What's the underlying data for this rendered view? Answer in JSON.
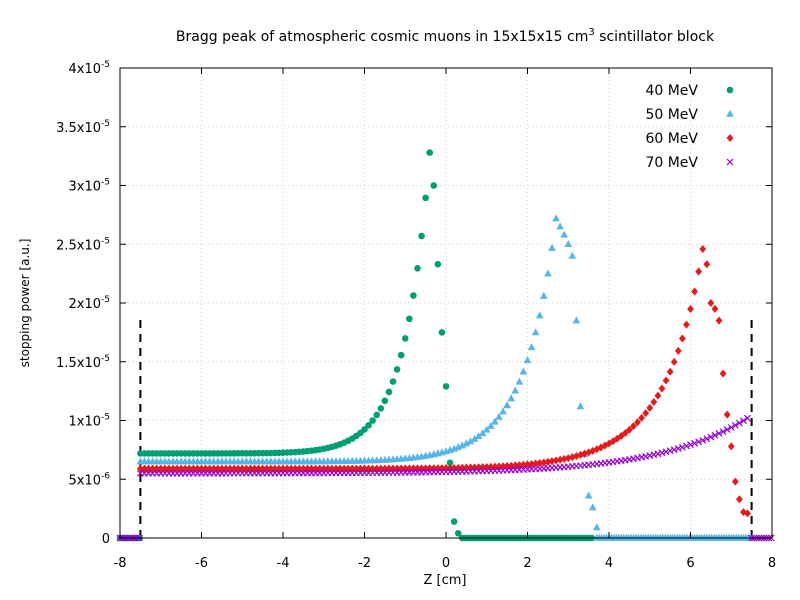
{
  "chart_data": {
    "type": "scatter",
    "title_main": "Bragg peak of atmospheric cosmic muons in 15x15x15 cm",
    "title_sup": "3",
    "title_tail": " scintillator block",
    "xlabel": "Z [cm]",
    "ylabel": "stopping power [a.u.]",
    "xlim": [
      -8,
      8
    ],
    "ylim": [
      0,
      4e-05
    ],
    "xticks": [
      {
        "value": -8,
        "label": "-8"
      },
      {
        "value": -6,
        "label": "-6"
      },
      {
        "value": -4,
        "label": "-4"
      },
      {
        "value": -2,
        "label": "-2"
      },
      {
        "value": 0,
        "label": "0"
      },
      {
        "value": 2,
        "label": "2"
      },
      {
        "value": 4,
        "label": "4"
      },
      {
        "value": 6,
        "label": "6"
      },
      {
        "value": 8,
        "label": "8"
      }
    ],
    "yticks": [
      {
        "value": 0,
        "base": "0",
        "exp": ""
      },
      {
        "value": 5e-06,
        "base": "5x10",
        "exp": "-6"
      },
      {
        "value": 1e-05,
        "base": "1x10",
        "exp": "-5"
      },
      {
        "value": 1.5e-05,
        "base": "1.5x10",
        "exp": "-5"
      },
      {
        "value": 2e-05,
        "base": "2x10",
        "exp": "-5"
      },
      {
        "value": 2.5e-05,
        "base": "2.5x10",
        "exp": "-5"
      },
      {
        "value": 3e-05,
        "base": "3x10",
        "exp": "-5"
      },
      {
        "value": 3.5e-05,
        "base": "3.5x10",
        "exp": "-5"
      },
      {
        "value": 4e-05,
        "base": "4x10",
        "exp": "-5"
      }
    ],
    "grid": true,
    "legend_position": "top-right",
    "block_edges": {
      "z": [
        -7.5,
        7.5
      ],
      "height": 1.88e-05
    },
    "series": [
      {
        "name": "40 MeV",
        "color": "#009e73",
        "marker": "circle",
        "model": {
          "x_start": -7.5,
          "x_peak": -0.4,
          "step": 0.1,
          "baseline": 7.2e-06,
          "peak": 3.28e-05,
          "tau": 0.48,
          "weight": 0.5
        },
        "fall": [
          [
            -0.3,
            3e-05
          ],
          [
            -0.2,
            2.33e-05
          ],
          [
            -0.1,
            1.75e-05
          ],
          [
            0.0,
            1.29e-05
          ],
          [
            0.1,
            6.4e-06
          ],
          [
            0.2,
            1.4e-06
          ],
          [
            0.3,
            4e-07
          ]
        ],
        "floor_ranges": [
          [
            -8,
            -7.5
          ],
          [
            0.4,
            3.6
          ]
        ]
      },
      {
        "name": "50 MeV",
        "color": "#56b4e9",
        "marker": "triangle",
        "model": {
          "x_start": -7.5,
          "x_peak": 2.7,
          "step": 0.1,
          "baseline": 6.5e-06,
          "peak": 2.72e-05,
          "tau": 0.55,
          "weight": 0.45
        },
        "fall": [
          [
            2.8,
            2.65e-05
          ],
          [
            2.9,
            2.58e-05
          ],
          [
            3.0,
            2.5e-05
          ],
          [
            3.1,
            2.4e-05
          ],
          [
            3.2,
            1.85e-05
          ],
          [
            3.3,
            1.12e-05
          ],
          [
            3.4,
            7.1e-06
          ],
          [
            3.5,
            3.6e-06
          ],
          [
            3.6,
            2.6e-06
          ],
          [
            3.7,
            9e-07
          ]
        ],
        "floor_ranges": [
          [
            3.7,
            7.5
          ]
        ]
      },
      {
        "name": "60 MeV",
        "color": "#e41a1c",
        "marker": "diamond",
        "model": {
          "x_start": -7.5,
          "x_peak": 6.3,
          "step": 0.1,
          "baseline": 5.9e-06,
          "peak": 2.46e-05,
          "tau": 0.6,
          "weight": 0.4
        },
        "fall": [
          [
            6.4,
            2.33e-05
          ],
          [
            6.5,
            2e-05
          ],
          [
            6.6,
            1.95e-05
          ],
          [
            6.7,
            1.85e-05
          ],
          [
            6.8,
            1.4e-05
          ],
          [
            6.9,
            1.05e-05
          ],
          [
            7.0,
            7.8e-06
          ],
          [
            7.1,
            4.8e-06
          ],
          [
            7.2,
            3.3e-06
          ],
          [
            7.3,
            2.2e-06
          ],
          [
            7.4,
            2.1e-06
          ]
        ],
        "floor_ranges": []
      },
      {
        "name": "70 MeV",
        "color": "#9400d3",
        "marker": "cross",
        "model": {
          "x_start": -7.5,
          "x_peak": 7.4,
          "step": 0.1,
          "baseline": 5.5e-06,
          "peak": 1.02e-05,
          "tau": 2.2,
          "weight": 0.7
        },
        "fall": [],
        "floor_ranges": [
          [
            -8,
            -7.5
          ],
          [
            7.5,
            8
          ]
        ]
      }
    ]
  }
}
